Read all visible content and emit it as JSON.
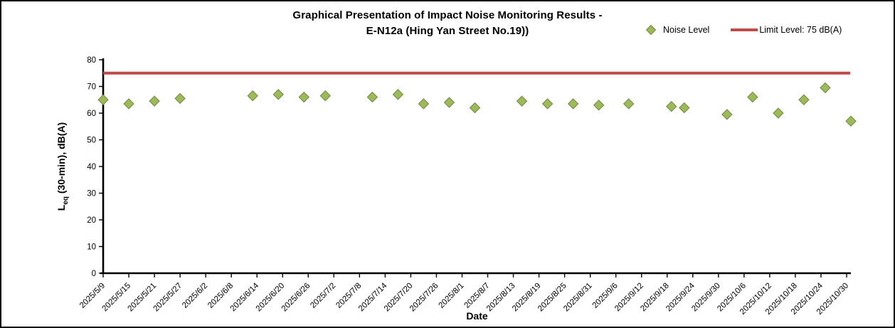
{
  "title": {
    "line1": "Graphical Presentation of Impact Noise Monitoring Results -",
    "line2": "E-N12a (Hing Yan Street No.19))"
  },
  "axes": {
    "y_label_main": "L",
    "y_label_sub": "eq",
    "y_label_rest": " (30-min), dB(A)",
    "x_label": "Date"
  },
  "colors": {
    "noise_marker_fill": "#9BBB59",
    "noise_marker_border": "#71893F",
    "limit_line": "#BE4B48",
    "axis": "#000000"
  },
  "chart_data": {
    "type": "scatter",
    "title": "Graphical Presentation of Impact Noise Monitoring Results - E-N12a (Hing Yan Street No.19))",
    "xlabel": "Date",
    "ylabel": "Leq (30-min), dB(A)",
    "ylim": [
      0,
      80
    ],
    "y_ticks": [
      0,
      10,
      20,
      30,
      40,
      50,
      60,
      70,
      80
    ],
    "x_range_days": [
      0,
      175
    ],
    "grid": false,
    "legend_position": "top-right",
    "x_ticks": [
      {
        "label": "2025/5/9",
        "day": 0
      },
      {
        "label": "2025/5/15",
        "day": 6
      },
      {
        "label": "2025/5/21",
        "day": 12
      },
      {
        "label": "2025/5/27",
        "day": 18
      },
      {
        "label": "2025/6/2",
        "day": 24
      },
      {
        "label": "2025/6/8",
        "day": 30
      },
      {
        "label": "2025/6/14",
        "day": 36
      },
      {
        "label": "2025/6/20",
        "day": 42
      },
      {
        "label": "2025/6/26",
        "day": 48
      },
      {
        "label": "2025/7/2",
        "day": 54
      },
      {
        "label": "2025/7/8",
        "day": 60
      },
      {
        "label": "2025/7/14",
        "day": 66
      },
      {
        "label": "2025/7/20",
        "day": 72
      },
      {
        "label": "2025/7/26",
        "day": 78
      },
      {
        "label": "2025/8/1",
        "day": 84
      },
      {
        "label": "2025/8/7",
        "day": 90
      },
      {
        "label": "2025/8/13",
        "day": 96
      },
      {
        "label": "2025/8/19",
        "day": 102
      },
      {
        "label": "2025/8/25",
        "day": 108
      },
      {
        "label": "2025/8/31",
        "day": 114
      },
      {
        "label": "2025/9/6",
        "day": 120
      },
      {
        "label": "2025/9/12",
        "day": 126
      },
      {
        "label": "2025/9/18",
        "day": 132
      },
      {
        "label": "2025/9/24",
        "day": 138
      },
      {
        "label": "2025/9/30",
        "day": 144
      },
      {
        "label": "2025/10/6",
        "day": 150
      },
      {
        "label": "2025/10/12",
        "day": 156
      },
      {
        "label": "2025/10/18",
        "day": 162
      },
      {
        "label": "2025/10/24",
        "day": 168
      },
      {
        "label": "2025/10/30",
        "day": 174
      }
    ],
    "series": [
      {
        "name": "Noise Level",
        "type": "scatter",
        "marker": "diamond",
        "color": "#9BBB59",
        "points": [
          {
            "date": "2025/5/9",
            "day": 0,
            "value": 65
          },
          {
            "date": "2025/5/15",
            "day": 6,
            "value": 63.5
          },
          {
            "date": "2025/5/21",
            "day": 12,
            "value": 64.5
          },
          {
            "date": "2025/5/27",
            "day": 18,
            "value": 65.5
          },
          {
            "date": "2025/6/13",
            "day": 35,
            "value": 66.5
          },
          {
            "date": "2025/6/19",
            "day": 41,
            "value": 67
          },
          {
            "date": "2025/6/25",
            "day": 47,
            "value": 66
          },
          {
            "date": "2025/6/30",
            "day": 52,
            "value": 66.5
          },
          {
            "date": "2025/7/11",
            "day": 63,
            "value": 66
          },
          {
            "date": "2025/7/17",
            "day": 69,
            "value": 67
          },
          {
            "date": "2025/7/23",
            "day": 75,
            "value": 63.5
          },
          {
            "date": "2025/7/29",
            "day": 81,
            "value": 64
          },
          {
            "date": "2025/8/4",
            "day": 87,
            "value": 62
          },
          {
            "date": "2025/8/15",
            "day": 98,
            "value": 64.5
          },
          {
            "date": "2025/8/21",
            "day": 104,
            "value": 63.5
          },
          {
            "date": "2025/8/27",
            "day": 110,
            "value": 63.5
          },
          {
            "date": "2025/9/2",
            "day": 116,
            "value": 63
          },
          {
            "date": "2025/9/9",
            "day": 123,
            "value": 63.5
          },
          {
            "date": "2025/9/19",
            "day": 133,
            "value": 62.5
          },
          {
            "date": "2025/9/22",
            "day": 136,
            "value": 62
          },
          {
            "date": "2025/10/2",
            "day": 146,
            "value": 59.5
          },
          {
            "date": "2025/10/8",
            "day": 152,
            "value": 66
          },
          {
            "date": "2025/10/14",
            "day": 158,
            "value": 60
          },
          {
            "date": "2025/10/20",
            "day": 164,
            "value": 65
          },
          {
            "date": "2025/10/25",
            "day": 169,
            "value": 69.5
          },
          {
            "date": "2025/10/31",
            "day": 175,
            "value": 57
          }
        ]
      },
      {
        "name": "Limit Level: 75 dB(A)",
        "type": "hline",
        "color": "#BE4B48",
        "value": 75
      }
    ]
  }
}
